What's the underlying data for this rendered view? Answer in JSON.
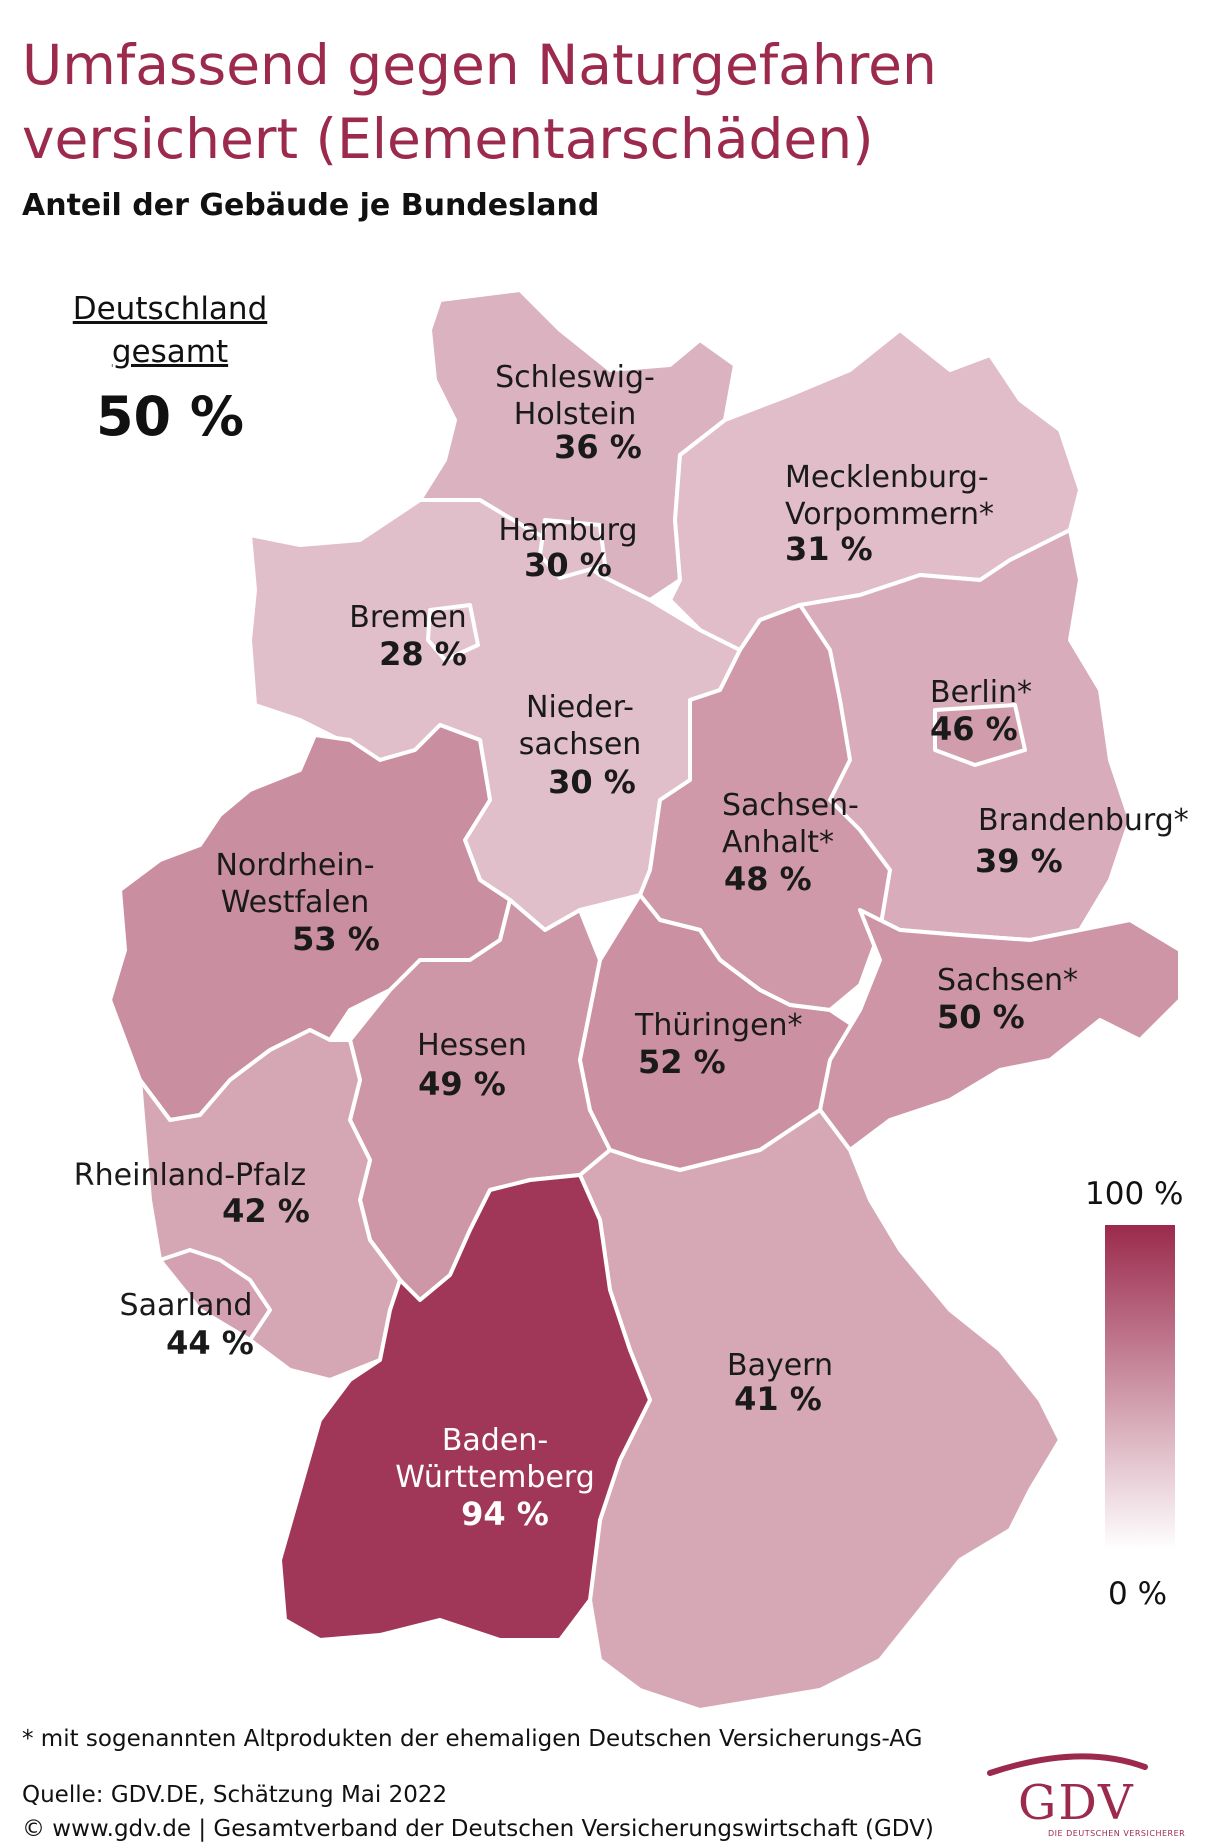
{
  "header": {
    "title_line1": "Umfassend gegen Naturgefahren",
    "title_line2": "versichert (Elementarschäden)",
    "subtitle": "Anteil der Gebäude je Bundesland"
  },
  "total": {
    "label_line1": "Deutschland",
    "label_line2": "gesamt",
    "value": "50 %"
  },
  "colors": {
    "title": "#9b2a4d",
    "scale_max": "#9b2a4d",
    "scale_min": "#ffffff",
    "region_stroke": "#ffffff"
  },
  "regions": [
    {
      "id": "schleswig-holstein",
      "name_lines": [
        "Schleswig-",
        "Holstein"
      ],
      "value_text": "36 %",
      "value": 36
    },
    {
      "id": "hamburg",
      "name_lines": [
        "Hamburg"
      ],
      "value_text": "30 %",
      "value": 30
    },
    {
      "id": "mecklenburg-vorpommern",
      "name_lines": [
        "Mecklenburg-",
        "Vorpommern*"
      ],
      "value_text": "31 %",
      "value": 31
    },
    {
      "id": "bremen",
      "name_lines": [
        "Bremen"
      ],
      "value_text": "28 %",
      "value": 28
    },
    {
      "id": "niedersachsen",
      "name_lines": [
        "Nieder-",
        "sachsen"
      ],
      "value_text": "30 %",
      "value": 30
    },
    {
      "id": "berlin",
      "name_lines": [
        "Berlin*"
      ],
      "value_text": "46 %",
      "value": 46
    },
    {
      "id": "brandenburg",
      "name_lines": [
        "Brandenburg*"
      ],
      "value_text": "39 %",
      "value": 39
    },
    {
      "id": "sachsen-anhalt",
      "name_lines": [
        "Sachsen-",
        "Anhalt*"
      ],
      "value_text": "48 %",
      "value": 48
    },
    {
      "id": "nordrhein-westfalen",
      "name_lines": [
        "Nordrhein-",
        "Westfalen"
      ],
      "value_text": "53 %",
      "value": 53
    },
    {
      "id": "sachsen",
      "name_lines": [
        "Sachsen*"
      ],
      "value_text": "50 %",
      "value": 50
    },
    {
      "id": "thueringen",
      "name_lines": [
        "Thüringen*"
      ],
      "value_text": "52 %",
      "value": 52
    },
    {
      "id": "hessen",
      "name_lines": [
        "Hessen"
      ],
      "value_text": "49 %",
      "value": 49
    },
    {
      "id": "rheinland-pfalz",
      "name_lines": [
        "Rheinland-Pfalz"
      ],
      "value_text": "42 %",
      "value": 42
    },
    {
      "id": "saarland",
      "name_lines": [
        "Saarland"
      ],
      "value_text": "44 %",
      "value": 44
    },
    {
      "id": "bayern",
      "name_lines": [
        "Bayern"
      ],
      "value_text": "41 %",
      "value": 41
    },
    {
      "id": "baden-wuerttemberg",
      "name_lines": [
        "Baden-",
        "Württemberg"
      ],
      "value_text": "94 %",
      "value": 94
    }
  ],
  "legend": {
    "max_label": "100 %",
    "min_label": "0 %",
    "min_value": 0,
    "max_value": 100
  },
  "footer": {
    "footnote": "* mit sogenannten Altprodukten der ehemaligen Deutschen Versicherungs-AG",
    "source_line1": "Quelle: GDV.DE, Schätzung Mai 2022",
    "source_line2": "© www.gdv.de | Gesamtverband der Deutschen Versicherungswirtschaft (GDV)",
    "logo_text": "GDV",
    "logo_sub": "DIE DEUTSCHEN VERSICHERER"
  }
}
